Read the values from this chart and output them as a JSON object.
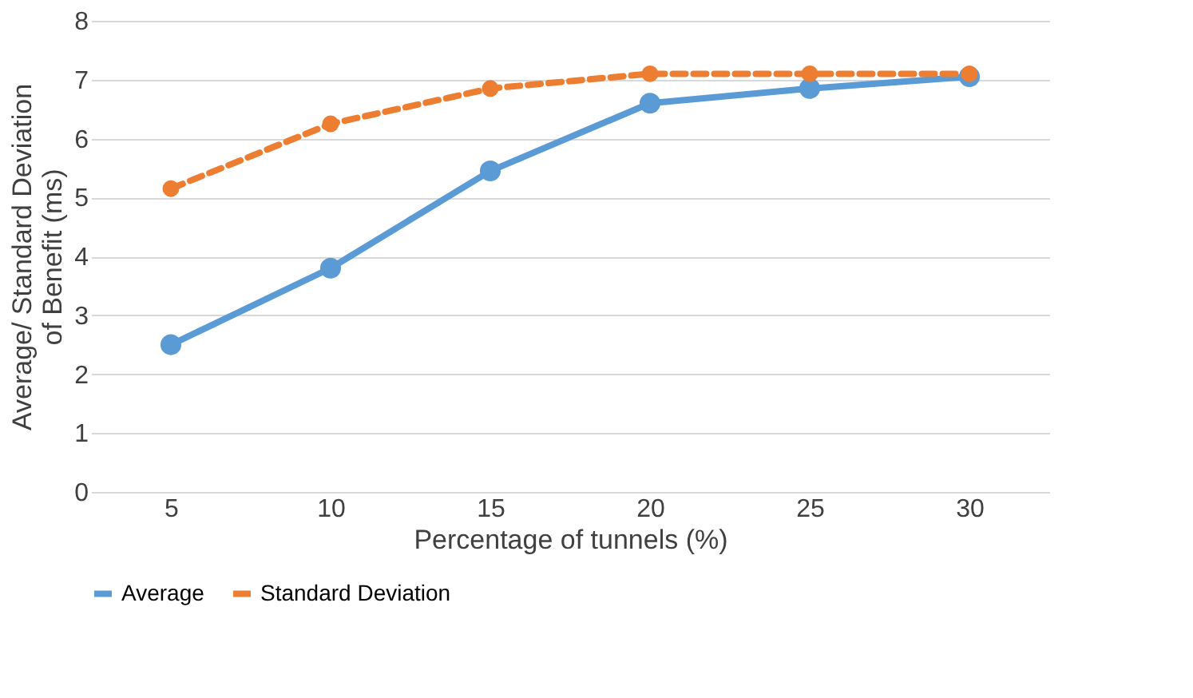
{
  "chart_data": {
    "type": "line",
    "xlabel": "Percentage of tunnels (%)",
    "ylabel": "Average/ Standard Deviation of Benefit (ms)",
    "categories": [
      "5",
      "10",
      "15",
      "20",
      "25",
      "30"
    ],
    "series": [
      {
        "name": "Average",
        "color": "#5b9bd5",
        "line_style": "solid",
        "values": [
          2.5,
          3.8,
          5.45,
          6.6,
          6.85,
          7.05
        ]
      },
      {
        "name": "Standard Deviation",
        "color": "#ed7d31",
        "line_style": "dashed",
        "values": [
          5.15,
          6.25,
          6.85,
          7.1,
          7.1,
          7.1
        ]
      }
    ],
    "ylim": [
      0,
      8
    ],
    "yticks": [
      0,
      1,
      2,
      3,
      4,
      5,
      6,
      7,
      8
    ],
    "grid": "y",
    "legend": "bottom",
    "marker": "circle"
  }
}
